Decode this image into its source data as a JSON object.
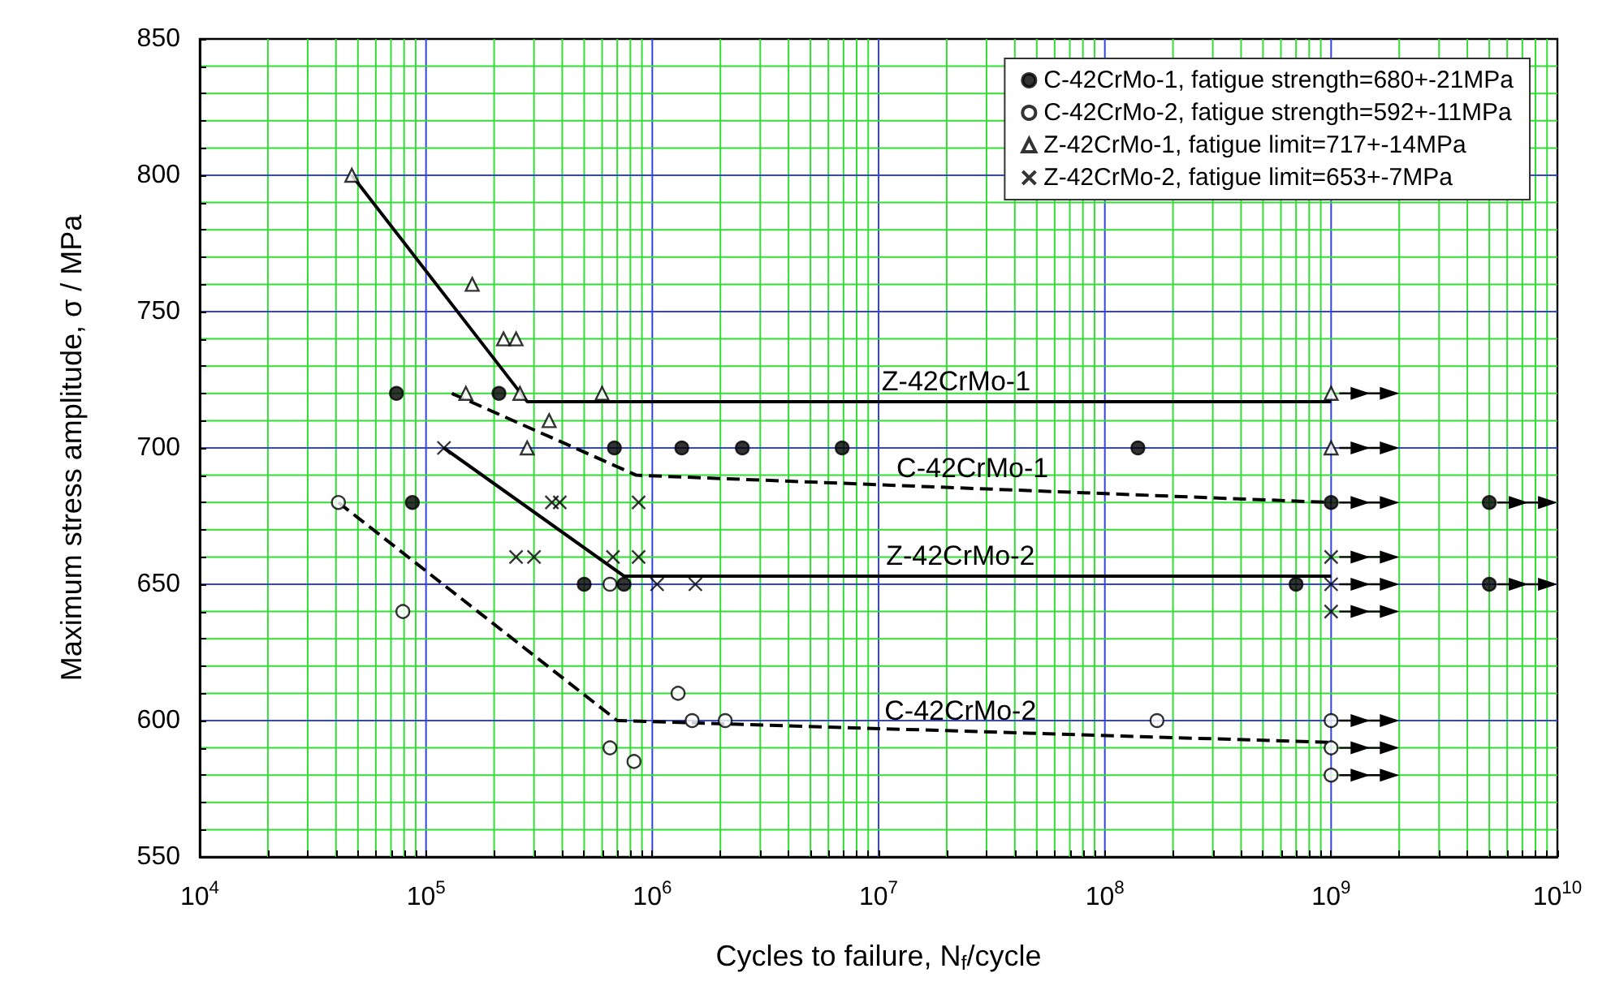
{
  "chart_data": {
    "type": "scatter",
    "xlabel": "Cycles to failure, N$_{f}$/cycle",
    "ylabel": "Maximum stress amplitude, σ / MPa",
    "log": "x",
    "grid": true,
    "legend": "top right",
    "xlim": [
      10000,
      10000000000
    ],
    "xticks": [
      {
        "value": 10000,
        "label": "10$^{4}$"
      },
      {
        "value": 20000,
        "label": null
      },
      {
        "value": 30000,
        "label": null
      },
      {
        "value": 40000,
        "label": null
      },
      {
        "value": 50000,
        "label": null
      },
      {
        "value": 60000,
        "label": null
      },
      {
        "value": 70000,
        "label": null
      },
      {
        "value": 80000,
        "label": null
      },
      {
        "value": 90000,
        "label": null
      },
      {
        "value": 100000,
        "label": "10$^{5}$"
      },
      {
        "value": 200000,
        "label": null
      },
      {
        "value": 300000,
        "label": null
      },
      {
        "value": 400000,
        "label": null
      },
      {
        "value": 500000,
        "label": null
      },
      {
        "value": 600000,
        "label": null
      },
      {
        "value": 700000,
        "label": null
      },
      {
        "value": 800000,
        "label": null
      },
      {
        "value": 900000,
        "label": null
      },
      {
        "value": 1000000,
        "label": "10$^{6}$"
      },
      {
        "value": 2000000,
        "label": null
      },
      {
        "value": 3000000,
        "label": null
      },
      {
        "value": 4000000,
        "label": null
      },
      {
        "value": 5000000,
        "label": null
      },
      {
        "value": 6000000,
        "label": null
      },
      {
        "value": 7000000,
        "label": null
      },
      {
        "value": 8000000,
        "label": null
      },
      {
        "value": 9000000,
        "label": null
      },
      {
        "value": 10000000,
        "label": "10$^{7}$"
      },
      {
        "value": 20000000,
        "label": null
      },
      {
        "value": 30000000,
        "label": null
      },
      {
        "value": 40000000,
        "label": null
      },
      {
        "value": 50000000,
        "label": null
      },
      {
        "value": 60000000,
        "label": null
      },
      {
        "value": 70000000,
        "label": null
      },
      {
        "value": 80000000,
        "label": null
      },
      {
        "value": 90000000,
        "label": null
      },
      {
        "value": 100000000,
        "label": "10$^{8}$"
      },
      {
        "value": 200000000,
        "label": null
      },
      {
        "value": 300000000,
        "label": null
      },
      {
        "value": 400000000,
        "label": null
      },
      {
        "value": 500000000,
        "label": null
      },
      {
        "value": 600000000,
        "label": null
      },
      {
        "value": 700000000,
        "label": null
      },
      {
        "value": 800000000,
        "label": null
      },
      {
        "value": 900000000,
        "label": null
      },
      {
        "value": 1000000000,
        "label": "10$^{9}$"
      },
      {
        "value": 2000000000,
        "label": null
      },
      {
        "value": 3000000000,
        "label": null
      },
      {
        "value": 4000000000,
        "label": null
      },
      {
        "value": 5000000000,
        "label": null
      },
      {
        "value": 6000000000,
        "label": null
      },
      {
        "value": 7000000000,
        "label": null
      },
      {
        "value": 8000000000,
        "label": null
      },
      {
        "value": 9000000000,
        "label": null
      },
      {
        "value": 10000000000,
        "label": "10$^{10}$"
      }
    ],
    "ylim": [
      550,
      850
    ],
    "yticks": [
      550,
      {
        "value": 560,
        "label": null
      },
      {
        "value": 570,
        "label": null
      },
      {
        "value": 580,
        "label": null
      },
      {
        "value": 590,
        "label": null
      },
      600,
      {
        "value": 610,
        "label": null
      },
      {
        "value": 620,
        "label": null
      },
      {
        "value": 630,
        "label": null
      },
      {
        "value": 640,
        "label": null
      },
      650,
      {
        "value": 660,
        "label": null
      },
      {
        "value": 670,
        "label": null
      },
      {
        "value": 680,
        "label": null
      },
      {
        "value": 690,
        "label": null
      },
      700,
      {
        "value": 710,
        "label": null
      },
      {
        "value": 720,
        "label": null
      },
      {
        "value": 730,
        "label": null
      },
      {
        "value": 740,
        "label": null
      },
      750,
      {
        "value": 760,
        "label": null
      },
      {
        "value": 770,
        "label": null
      },
      {
        "value": 780,
        "label": null
      },
      {
        "value": 790,
        "label": null
      },
      800,
      {
        "value": 810,
        "label": null
      },
      {
        "value": 820,
        "label": null
      },
      {
        "value": 830,
        "label": null
      },
      {
        "value": 840,
        "label": null
      },
      850
    ],
    "series": [
      {
        "name": "C-42CrMo-1, fatigue strength=680+-21MPa",
        "marker": "circle",
        "color": "#000000",
        "x": [
          74000,
          210000,
          87000,
          680000,
          1350000,
          2500000,
          6900000,
          140000000,
          500000,
          750000,
          700000000,
          1000000000,
          5000000000,
          5000000000
        ],
        "values": [
          720,
          720,
          680,
          700,
          700,
          700,
          700,
          700,
          650,
          650,
          650,
          680,
          680,
          650
        ]
      },
      {
        "name": "C-42CrMo-2, fatigue strength=592+-11MPa",
        "marker": "circle",
        "color": "#ffffff",
        "x": [
          41000,
          79000,
          650000,
          830000,
          1300000,
          1500000,
          2100000,
          170000000,
          650000,
          1000000000,
          1000000000,
          1000000000
        ],
        "values": [
          680,
          640,
          590,
          585,
          610,
          600,
          600,
          600,
          650,
          600,
          590,
          580
        ]
      },
      {
        "name": "Z-42CrMo-1, fatigue limit=717+-14MPa",
        "marker": "triangle",
        "color": "#ffffff",
        "x": [
          47000,
          160000,
          220000,
          250000,
          150000,
          260000,
          600000,
          350000,
          280000,
          1000000000,
          1000000000
        ],
        "values": [
          800,
          760,
          740,
          740,
          720,
          720,
          720,
          710,
          700,
          720,
          700
        ]
      },
      {
        "name": "Z-42CrMo-2, fatigue limit=653+-7MPa",
        "marker": "cross",
        "color": "#000000",
        "x": [
          120000,
          360000,
          390000,
          250000,
          300000,
          670000,
          870000,
          870000,
          1050000,
          1550000,
          1000000000,
          1000000000,
          1000000000
        ],
        "values": [
          700,
          680,
          680,
          660,
          660,
          660,
          680,
          660,
          650,
          650,
          660,
          650,
          640
        ]
      },
      {
        "type": "line",
        "marker": "none",
        "line_style": "solid",
        "color": "#000000",
        "x": [
          47000,
          280000,
          1000000000
        ],
        "values": [
          800,
          717,
          717
        ]
      },
      {
        "type": "line",
        "marker": "none",
        "line_style": "dashed",
        "color": "#000000",
        "x": [
          130000,
          850000,
          1000000000
        ],
        "values": [
          720,
          690,
          680
        ]
      },
      {
        "type": "line",
        "marker": "none",
        "line_style": "solid",
        "color": "#000000",
        "x": [
          120000,
          750000,
          1000000000
        ],
        "values": [
          700,
          653,
          653
        ]
      },
      {
        "type": "line",
        "marker": "none",
        "line_style": "dashed",
        "color": "#000000",
        "x": [
          41000,
          700000,
          1000000000
        ],
        "values": [
          680,
          600,
          592
        ]
      }
    ],
    "annotations": [
      {
        "text": "Z-42CrMo-1",
        "x": 22000000,
        "y": 717
      },
      {
        "text": "C-42CrMo-1",
        "x": 26000000,
        "y": 685
      },
      {
        "text": "Z-42CrMo-2",
        "x": 23000000,
        "y": 653
      },
      {
        "text": "C-42CrMo-2",
        "x": 23000000,
        "y": 596
      }
    ]
  }
}
